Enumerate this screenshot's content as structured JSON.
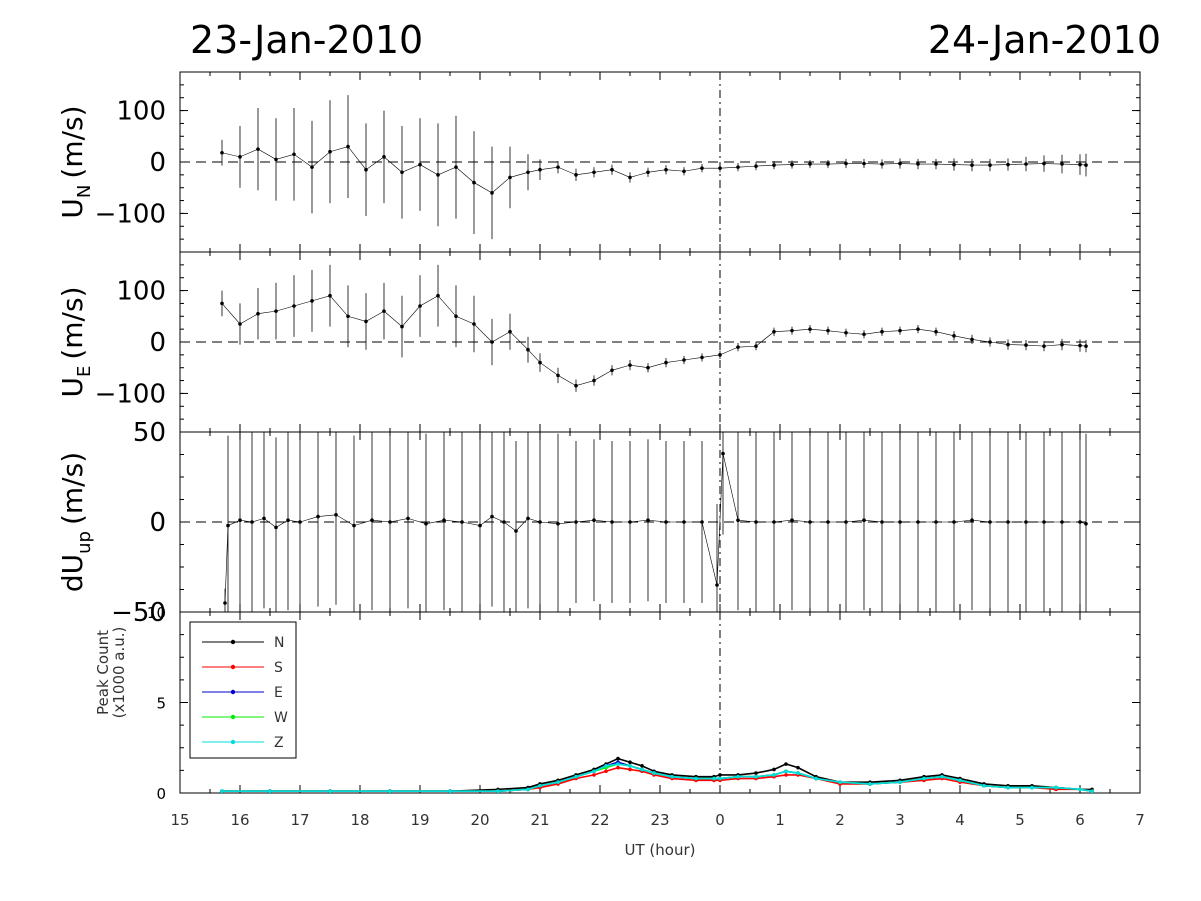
{
  "header": {
    "date_left": "23-Jan-2010",
    "date_right": "24-Jan-2010"
  },
  "xaxis": {
    "label": "UT (hour)",
    "ticks": [
      "15",
      "16",
      "17",
      "18",
      "19",
      "20",
      "21",
      "22",
      "23",
      "0",
      "1",
      "2",
      "3",
      "4",
      "5",
      "6",
      "7"
    ],
    "range_hours": [
      15,
      31
    ],
    "midnight_marker_hour": 24
  },
  "chart_data": [
    {
      "type": "scatter",
      "panel": "un",
      "ylabel": "U",
      "ylabel_sub": "N",
      "ylabel_unit": "(m/s)",
      "ylim": [
        -175,
        175
      ],
      "yticks": [
        "100",
        "0",
        "−100"
      ],
      "ytick_values": [
        100,
        0,
        -100
      ],
      "zero_line": true,
      "series": [
        {
          "x": [
            15.7,
            16.0,
            16.3,
            16.6,
            16.9,
            17.2,
            17.5,
            17.8,
            18.1,
            18.4,
            18.7,
            19.0,
            19.3,
            19.6,
            19.9,
            20.2,
            20.5,
            20.8,
            21.0,
            21.3,
            21.6,
            21.9,
            22.2,
            22.5,
            22.8,
            23.1,
            23.4,
            23.7,
            24.0,
            24.3,
            24.6,
            24.9,
            25.2,
            25.5,
            25.8,
            26.1,
            26.4,
            26.7,
            27.0,
            27.3,
            27.6,
            27.9,
            28.2,
            28.5,
            28.8,
            29.1,
            29.4,
            29.7,
            30.0,
            30.1
          ],
          "y": [
            18,
            10,
            25,
            5,
            15,
            -10,
            20,
            30,
            -15,
            10,
            -20,
            -5,
            -25,
            -10,
            -40,
            -60,
            -30,
            -20,
            -15,
            -10,
            -25,
            -20,
            -15,
            -30,
            -20,
            -15,
            -18,
            -12,
            -12,
            -10,
            -8,
            -6,
            -5,
            -4,
            -4,
            -3,
            -3,
            -4,
            -3,
            -4,
            -4,
            -5,
            -6,
            -6,
            -5,
            -4,
            -3,
            -4,
            -5,
            -6
          ],
          "err": [
            25,
            60,
            80,
            80,
            90,
            90,
            100,
            100,
            90,
            90,
            90,
            90,
            100,
            100,
            100,
            90,
            60,
            35,
            20,
            12,
            12,
            10,
            10,
            10,
            9,
            9,
            8,
            8,
            8,
            8,
            8,
            8,
            8,
            8,
            8,
            9,
            9,
            9,
            10,
            10,
            10,
            12,
            12,
            12,
            12,
            14,
            16,
            18,
            20,
            22
          ]
        }
      ]
    },
    {
      "type": "scatter",
      "panel": "ue",
      "ylabel": "U",
      "ylabel_sub": "E",
      "ylabel_unit": "(m/s)",
      "ylim": [
        -175,
        175
      ],
      "yticks": [
        "100",
        "0",
        "−100"
      ],
      "ytick_values": [
        100,
        0,
        -100
      ],
      "zero_line": true,
      "series": [
        {
          "x": [
            15.7,
            16.0,
            16.3,
            16.6,
            16.9,
            17.2,
            17.5,
            17.8,
            18.1,
            18.4,
            18.7,
            19.0,
            19.3,
            19.6,
            19.9,
            20.2,
            20.5,
            20.8,
            21.0,
            21.3,
            21.6,
            21.9,
            22.2,
            22.5,
            22.8,
            23.1,
            23.4,
            23.7,
            24.0,
            24.3,
            24.6,
            24.9,
            25.2,
            25.5,
            25.8,
            26.1,
            26.4,
            26.7,
            27.0,
            27.3,
            27.6,
            27.9,
            28.2,
            28.5,
            28.8,
            29.1,
            29.4,
            29.7,
            30.0,
            30.1
          ],
          "y": [
            75,
            35,
            55,
            60,
            70,
            80,
            90,
            50,
            40,
            60,
            30,
            70,
            90,
            50,
            35,
            0,
            20,
            -15,
            -40,
            -65,
            -85,
            -75,
            -55,
            -45,
            -50,
            -40,
            -35,
            -30,
            -25,
            -10,
            -8,
            20,
            22,
            25,
            22,
            18,
            15,
            20,
            22,
            25,
            20,
            12,
            5,
            0,
            -5,
            -6,
            -8,
            -5,
            -7,
            -8
          ],
          "err": [
            25,
            40,
            50,
            55,
            60,
            60,
            60,
            60,
            55,
            55,
            60,
            60,
            60,
            60,
            55,
            45,
            35,
            25,
            18,
            15,
            12,
            10,
            10,
            10,
            9,
            9,
            8,
            8,
            8,
            8,
            8,
            8,
            8,
            8,
            8,
            8,
            8,
            8,
            8,
            8,
            8,
            9,
            9,
            9,
            10,
            10,
            10,
            11,
            12,
            12
          ]
        }
      ]
    },
    {
      "type": "scatter",
      "panel": "dup",
      "ylabel": "dU",
      "ylabel_sub": "up",
      "ylabel_unit": "(m/s)",
      "ylim": [
        -50,
        50
      ],
      "yticks": [
        "50",
        "0",
        "−50"
      ],
      "ytick_values": [
        50,
        0,
        -50
      ],
      "zero_line": true,
      "series": [
        {
          "x": [
            15.75,
            15.8,
            16.0,
            16.2,
            16.4,
            16.6,
            16.8,
            17.0,
            17.3,
            17.6,
            17.9,
            18.2,
            18.5,
            18.8,
            19.1,
            19.4,
            19.7,
            20.0,
            20.2,
            20.4,
            20.6,
            20.8,
            21.0,
            21.3,
            21.6,
            21.9,
            22.2,
            22.5,
            22.8,
            23.1,
            23.4,
            23.7,
            23.95,
            24.05,
            24.3,
            24.6,
            24.9,
            25.2,
            25.5,
            25.8,
            26.1,
            26.4,
            26.7,
            27.0,
            27.3,
            27.6,
            27.9,
            28.2,
            28.5,
            28.8,
            29.1,
            29.4,
            29.7,
            30.0,
            30.1
          ],
          "y": [
            -45,
            -2,
            1,
            0,
            2,
            -3,
            1,
            0,
            3,
            4,
            -2,
            1,
            0,
            2,
            -1,
            1,
            0,
            -2,
            3,
            0,
            -5,
            2,
            0,
            -1,
            0,
            1,
            0,
            0,
            1,
            0,
            0,
            0,
            -35,
            38,
            1,
            0,
            0,
            1,
            0,
            0,
            0,
            1,
            0,
            0,
            0,
            0,
            0,
            1,
            0,
            0,
            0,
            0,
            0,
            0,
            -1
          ],
          "err": [
            8,
            50,
            50,
            50,
            50,
            50,
            50,
            50,
            50,
            50,
            50,
            50,
            50,
            50,
            50,
            50,
            50,
            50,
            50,
            50,
            50,
            50,
            50,
            50,
            45,
            45,
            45,
            45,
            45,
            45,
            45,
            45,
            45,
            45,
            50,
            50,
            50,
            50,
            50,
            50,
            50,
            50,
            50,
            50,
            50,
            50,
            50,
            50,
            50,
            50,
            50,
            50,
            50,
            50,
            50
          ]
        }
      ]
    },
    {
      "type": "line",
      "panel": "peak",
      "ylabel": "Peak Count",
      "ylabel_unit": "(x1000 a.u.)",
      "ylim": [
        0,
        10
      ],
      "yticks": [
        "10",
        "5",
        "0"
      ],
      "ytick_values": [
        10,
        5,
        0
      ],
      "legend_position": "top-left",
      "x": [
        15.7,
        16.5,
        17.5,
        18.5,
        19.5,
        20.3,
        20.8,
        21.0,
        21.3,
        21.6,
        21.9,
        22.1,
        22.3,
        22.5,
        22.7,
        22.9,
        23.2,
        23.6,
        23.9,
        24.0,
        24.3,
        24.6,
        24.9,
        25.1,
        25.3,
        25.6,
        26.0,
        26.5,
        27.0,
        27.4,
        27.7,
        28.0,
        28.4,
        28.8,
        29.2,
        29.6,
        30.0,
        30.2
      ],
      "series": [
        {
          "name": "N",
          "color": "#000000",
          "values": [
            0.1,
            0.1,
            0.1,
            0.1,
            0.1,
            0.2,
            0.3,
            0.5,
            0.7,
            1.0,
            1.3,
            1.6,
            1.9,
            1.7,
            1.5,
            1.2,
            1.0,
            0.9,
            0.9,
            1.0,
            1.0,
            1.1,
            1.3,
            1.6,
            1.4,
            0.9,
            0.6,
            0.6,
            0.7,
            0.9,
            1.0,
            0.8,
            0.5,
            0.4,
            0.4,
            0.3,
            0.2,
            0.2
          ]
        },
        {
          "name": "S",
          "color": "#ff0000",
          "values": [
            0.1,
            0.1,
            0.1,
            0.1,
            0.1,
            0.1,
            0.2,
            0.3,
            0.5,
            0.8,
            1.0,
            1.2,
            1.4,
            1.3,
            1.2,
            1.0,
            0.8,
            0.7,
            0.7,
            0.7,
            0.8,
            0.8,
            0.9,
            1.0,
            1.0,
            0.8,
            0.5,
            0.5,
            0.6,
            0.7,
            0.8,
            0.6,
            0.4,
            0.3,
            0.3,
            0.2,
            0.2,
            0.1
          ]
        },
        {
          "name": "E",
          "color": "#0000cc",
          "values": [
            0.1,
            0.1,
            0.1,
            0.1,
            0.1,
            0.1,
            0.2,
            0.4,
            0.6,
            0.9,
            1.2,
            1.5,
            1.7,
            1.5,
            1.3,
            1.1,
            0.9,
            0.8,
            0.8,
            0.8,
            0.9,
            0.9,
            1.0,
            1.2,
            1.1,
            0.8,
            0.6,
            0.5,
            0.6,
            0.8,
            0.9,
            0.7,
            0.4,
            0.3,
            0.3,
            0.3,
            0.2,
            0.1
          ]
        },
        {
          "name": "W",
          "color": "#00ee00",
          "values": [
            0.1,
            0.1,
            0.1,
            0.1,
            0.1,
            0.1,
            0.2,
            0.4,
            0.6,
            0.9,
            1.2,
            1.4,
            1.6,
            1.5,
            1.3,
            1.1,
            0.9,
            0.8,
            0.8,
            0.8,
            0.9,
            0.9,
            1.0,
            1.2,
            1.1,
            0.8,
            0.6,
            0.5,
            0.6,
            0.8,
            0.9,
            0.7,
            0.4,
            0.3,
            0.3,
            0.3,
            0.2,
            0.1
          ]
        },
        {
          "name": "Z",
          "color": "#00dddd",
          "values": [
            0.1,
            0.1,
            0.1,
            0.1,
            0.1,
            0.1,
            0.2,
            0.4,
            0.6,
            0.9,
            1.2,
            1.5,
            1.6,
            1.5,
            1.3,
            1.1,
            0.9,
            0.8,
            0.8,
            0.8,
            0.9,
            0.9,
            1.0,
            1.2,
            1.1,
            0.8,
            0.6,
            0.5,
            0.6,
            0.8,
            0.9,
            0.7,
            0.4,
            0.3,
            0.3,
            0.3,
            0.2,
            0.1
          ]
        }
      ]
    }
  ]
}
